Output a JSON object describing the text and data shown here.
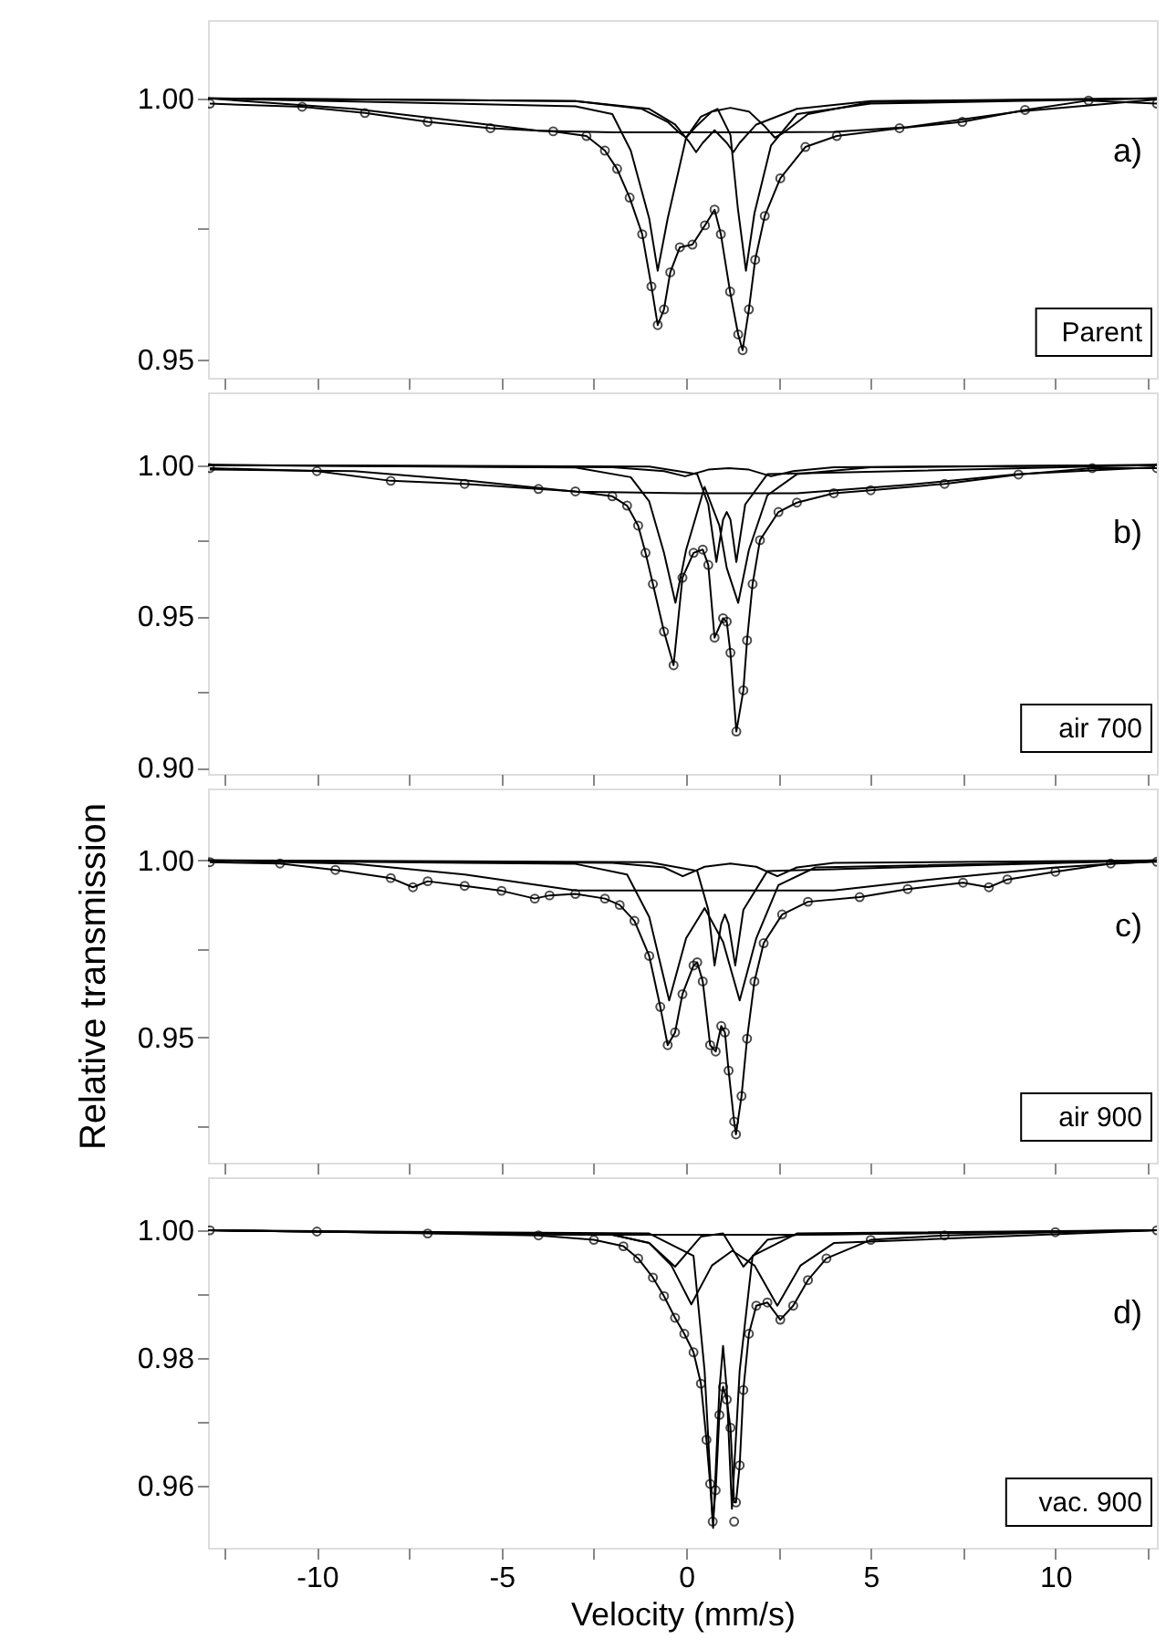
{
  "chart_data": [
    {
      "type": "line",
      "xlim": [
        -12.95,
        12.75
      ],
      "ylim": [
        0.9465,
        1.015
      ],
      "xticks": [
        {
          "value": -12.5,
          "label": null
        },
        -10,
        {
          "value": -7.5,
          "label": null
        },
        -5,
        {
          "value": -2.5,
          "label": null
        },
        0,
        {
          "value": 2.5,
          "label": null
        },
        5,
        {
          "value": 7.5,
          "label": null
        },
        10,
        {
          "value": 12.5,
          "label": null
        }
      ],
      "yticks": [
        0.95,
        {
          "value": 0.975,
          "label": null
        },
        {
          "value": 1.0,
          "label": "1.00"
        }
      ],
      "tick_labels": "y",
      "line_style": "solid",
      "annotations": [
        "a)",
        "Parent"
      ],
      "series": [
        {
          "type": "scatter",
          "marker": "circle",
          "color": "#000000",
          "x": [
            -12.9,
            -10.4,
            -8.7,
            -7.0,
            -5.3,
            -3.6,
            -2.7,
            -2.2,
            -1.87,
            -1.53,
            -1.19,
            -0.94,
            -0.77,
            -0.6,
            -0.43,
            -0.17,
            0.17,
            0.51,
            0.77,
            0.94,
            1.19,
            1.41,
            1.53,
            1.7,
            1.87,
            2.13,
            2.55,
            3.23,
            4.08,
            5.78,
            7.48,
            9.18,
            10.9,
            12.75
          ],
          "values": [
            0.999,
            0.9984,
            0.9972,
            0.9955,
            0.9943,
            0.9937,
            0.9928,
            0.99,
            0.9865,
            0.981,
            0.974,
            0.964,
            0.9566,
            0.9596,
            0.9667,
            0.9715,
            0.972,
            0.9757,
            0.9787,
            0.974,
            0.963,
            0.9548,
            0.9518,
            0.9596,
            0.9691,
            0.9775,
            0.9847,
            0.9907,
            0.9928,
            0.9943,
            0.9955,
            0.9978,
            0.9996,
            0.999
          ]
        },
        {
          "color": "#000000",
          "x": [
            -12.9,
            -10.4,
            -8.7,
            -7.0,
            -5.3,
            -3.6,
            -2.7,
            -2.2,
            -1.87,
            -1.53,
            -1.19,
            -0.94,
            -0.77,
            -0.6,
            -0.43,
            -0.17,
            0.17,
            0.51,
            0.77,
            0.94,
            1.19,
            1.41,
            1.53,
            1.7,
            1.87,
            2.13,
            2.55,
            3.23,
            4.08,
            5.78,
            7.48,
            9.18,
            10.9,
            12.75
          ],
          "values": [
            0.999,
            0.9984,
            0.9972,
            0.9955,
            0.9943,
            0.9937,
            0.9928,
            0.99,
            0.9865,
            0.981,
            0.974,
            0.964,
            0.9566,
            0.9596,
            0.9667,
            0.9715,
            0.972,
            0.9757,
            0.9787,
            0.974,
            0.963,
            0.9548,
            0.9518,
            0.9596,
            0.9691,
            0.9775,
            0.9847,
            0.9907,
            0.9928,
            0.9943,
            0.9955,
            0.9978,
            0.9996,
            0.999
          ]
        },
        {
          "color": "#000000",
          "x": [
            -12.95,
            -9,
            -6,
            -4,
            -2,
            0,
            2,
            4,
            6,
            9,
            12.75
          ],
          "values": [
            1.0,
            0.998,
            0.9955,
            0.9938,
            0.9935,
            0.9935,
            0.9935,
            0.9936,
            0.9945,
            0.9975,
            0.9998
          ]
        },
        {
          "color": "#000000",
          "x": [
            -12.95,
            -3,
            -2,
            -1.5,
            -1,
            -0.77,
            -0.5,
            0,
            0.4,
            0.85,
            1.2,
            1.4,
            1.62,
            1.85,
            2.3,
            3,
            5,
            12.75
          ],
          "values": [
            1.0,
            0.9985,
            0.997,
            0.99,
            0.977,
            0.967,
            0.977,
            0.9925,
            0.9965,
            0.998,
            0.993,
            0.979,
            0.967,
            0.978,
            0.991,
            0.997,
            0.999,
            1.0
          ]
        },
        {
          "color": "#000000",
          "x": [
            -12.95,
            -3,
            -1,
            -0.3,
            0.1,
            0.27,
            0.45,
            0.77,
            1.1,
            1.28,
            1.45,
            1.9,
            3,
            5,
            12.75
          ],
          "values": [
            1.0,
            0.9995,
            0.998,
            0.995,
            0.9915,
            0.9897,
            0.9915,
            0.9939,
            0.9915,
            0.9897,
            0.9915,
            0.995,
            0.998,
            0.9995,
            1.0
          ]
        },
        {
          "color": "#000000",
          "x": [
            -12.95,
            -3,
            -1.2,
            -0.5,
            -0.2,
            0,
            0.25,
            0.7,
            1.2,
            1.7,
            2.15,
            2.4,
            2.65,
            3.3,
            5,
            12.75
          ],
          "values": [
            1.0,
            0.9995,
            0.998,
            0.9955,
            0.9935,
            0.9925,
            0.9945,
            0.9975,
            0.9982,
            0.9975,
            0.9945,
            0.9925,
            0.9935,
            0.997,
            0.9993,
            1.0
          ]
        }
      ]
    },
    {
      "type": "line",
      "xlim": [
        -12.95,
        12.75
      ],
      "ylim": [
        0.898,
        1.024
      ],
      "xticks": [
        {
          "value": -12.5,
          "label": null
        },
        -10,
        {
          "value": -7.5,
          "label": null
        },
        -5,
        {
          "value": -2.5,
          "label": null
        },
        0,
        {
          "value": 2.5,
          "label": null
        },
        5,
        {
          "value": 7.5,
          "label": null
        },
        10,
        {
          "value": 12.5,
          "label": null
        }
      ],
      "yticks": [
        {
          "value": 0.9,
          "label": "0.90"
        },
        {
          "value": 0.925,
          "label": null
        },
        0.95,
        {
          "value": 0.975,
          "label": null
        },
        {
          "value": 1.0,
          "label": "1.00"
        }
      ],
      "tick_labels": "y",
      "line_style": "solid",
      "annotations": [
        "b)",
        "air 700"
      ],
      "series": [
        {
          "type": "scatter",
          "marker": "circle",
          "color": "#000000",
          "x": [
            -12.9,
            -10,
            -8,
            -6,
            -4,
            -3,
            -2,
            -1.6,
            -1.3,
            -1.1,
            -0.9,
            -0.6,
            -0.34,
            -0.1,
            0.2,
            0.45,
            0.6,
            0.77,
            1.0,
            1.1,
            1.2,
            1.36,
            1.55,
            1.65,
            1.8,
            2.0,
            2.5,
            3,
            4,
            5,
            7,
            9,
            11,
            12.75
          ],
          "values": [
            0.999,
            0.998,
            0.9948,
            0.9938,
            0.9921,
            0.9913,
            0.9897,
            0.9866,
            0.98,
            0.971,
            0.9607,
            0.945,
            0.9339,
            0.9628,
            0.971,
            0.9721,
            0.967,
            0.943,
            0.9494,
            0.9483,
            0.938,
            0.912,
            0.9256,
            0.9421,
            0.9607,
            0.9752,
            0.9845,
            0.9876,
            0.9907,
            0.9917,
            0.9938,
            0.9969,
            0.999,
            0.999
          ]
        },
        {
          "color": "#000000",
          "x": [
            -12.9,
            -10,
            -8,
            -6,
            -4,
            -3,
            -2,
            -1.6,
            -1.3,
            -1.1,
            -0.9,
            -0.6,
            -0.34,
            -0.1,
            0.2,
            0.45,
            0.6,
            0.77,
            1.0,
            1.1,
            1.2,
            1.36,
            1.55,
            1.65,
            1.8,
            2.0,
            2.5,
            3,
            4,
            5,
            7,
            9,
            11,
            12.75
          ],
          "values": [
            0.999,
            0.998,
            0.9948,
            0.9938,
            0.9921,
            0.9913,
            0.9897,
            0.9866,
            0.98,
            0.971,
            0.9607,
            0.945,
            0.9339,
            0.9628,
            0.971,
            0.9721,
            0.967,
            0.943,
            0.9494,
            0.9483,
            0.938,
            0.912,
            0.9256,
            0.9421,
            0.9607,
            0.9752,
            0.9845,
            0.9876,
            0.9907,
            0.9917,
            0.9938,
            0.9969,
            0.999,
            0.999
          ]
        },
        {
          "color": "#000000",
          "x": [
            -12.9,
            -9,
            -6,
            -3,
            0,
            3,
            6,
            9,
            12.7
          ],
          "values": [
            0.9985,
            0.998,
            0.995,
            0.9912,
            0.9907,
            0.9907,
            0.9935,
            0.997,
            0.9993
          ]
        },
        {
          "color": "#000000",
          "x": [
            -12.95,
            -3,
            -1.5,
            -1,
            -0.6,
            -0.29,
            0,
            0.5,
            0.9,
            1.1,
            1.41,
            1.7,
            2.2,
            3,
            5,
            12.75
          ],
          "values": [
            1.0,
            0.9992,
            0.996,
            0.988,
            0.971,
            0.9545,
            0.972,
            0.9928,
            0.98,
            0.966,
            0.9545,
            0.972,
            0.99,
            0.997,
            0.9993,
            1.0
          ]
        },
        {
          "color": "#000000",
          "x": [
            -12.95,
            -1,
            0.3,
            0.6,
            0.82,
            1.0,
            1.1,
            1.2,
            1.36,
            1.6,
            2.2,
            12.75
          ],
          "values": [
            1.0,
            0.9995,
            0.997,
            0.987,
            0.968,
            0.982,
            0.9845,
            0.982,
            0.968,
            0.987,
            0.997,
            1.0
          ]
        },
        {
          "color": "#000000",
          "x": [
            -12.95,
            -2,
            -0.6,
            -0.03,
            0.6,
            1.15,
            1.7,
            2.3,
            2.9,
            4,
            12.75
          ],
          "values": [
            1.0,
            0.9993,
            0.998,
            0.9963,
            0.9985,
            0.999,
            0.9985,
            0.9963,
            0.998,
            0.9993,
            1.0
          ]
        }
      ]
    },
    {
      "type": "line",
      "xlim": [
        -12.95,
        12.75
      ],
      "ylim": [
        0.9146,
        1.0203
      ],
      "xticks": [
        {
          "value": -12.5,
          "label": null
        },
        -10,
        {
          "value": -7.5,
          "label": null
        },
        -5,
        {
          "value": -2.5,
          "label": null
        },
        0,
        {
          "value": 2.5,
          "label": null
        },
        5,
        {
          "value": 7.5,
          "label": null
        },
        10,
        {
          "value": 12.5,
          "label": null
        }
      ],
      "yticks": [
        {
          "value": 0.925,
          "label": null
        },
        0.95,
        {
          "value": 0.975,
          "label": null
        },
        {
          "value": 1.0,
          "label": "1.00"
        }
      ],
      "tick_labels": "y",
      "ylabel": "Relative transmission",
      "line_style": "solid",
      "annotations": [
        "c)",
        "air 900"
      ],
      "series": [
        {
          "type": "scatter",
          "marker": "circle",
          "color": "#000000",
          "x": [
            -12.9,
            -11,
            -9.5,
            -8,
            -7.4,
            -7.0,
            -6,
            -5,
            -4.1,
            -3.7,
            -3,
            -2.2,
            -1.8,
            -1.4,
            -1.0,
            -0.7,
            -0.5,
            -0.3,
            -0.1,
            0.2,
            0.3,
            0.45,
            0.65,
            0.8,
            0.95,
            1.05,
            1.15,
            1.3,
            1.35,
            1.5,
            1.65,
            1.85,
            2.1,
            2.6,
            3.3,
            4.7,
            6,
            7.5,
            8.2,
            8.7,
            10,
            11.5,
            12.75
          ],
          "values": [
            0.9995,
            0.9991,
            0.9973,
            0.995,
            0.9924,
            0.9941,
            0.9928,
            0.9914,
            0.9892,
            0.9901,
            0.9905,
            0.9892,
            0.9874,
            0.9829,
            0.973,
            0.9586,
            0.9478,
            0.9514,
            0.9622,
            0.9703,
            0.9712,
            0.9658,
            0.9478,
            0.946,
            0.9532,
            0.9514,
            0.9406,
            0.9262,
            0.9226,
            0.9334,
            0.9496,
            0.9658,
            0.9766,
            0.9847,
            0.9883,
            0.9896,
            0.9919,
            0.9937,
            0.9924,
            0.9946,
            0.9968,
            0.9991,
            0.9996
          ]
        },
        {
          "color": "#000000",
          "x": [
            -12.9,
            -11,
            -9.5,
            -8,
            -7.4,
            -7.0,
            -6,
            -5,
            -4.1,
            -3.7,
            -3,
            -2.2,
            -1.8,
            -1.4,
            -1.0,
            -0.7,
            -0.5,
            -0.3,
            -0.1,
            0.2,
            0.3,
            0.45,
            0.65,
            0.8,
            0.95,
            1.05,
            1.15,
            1.3,
            1.35,
            1.5,
            1.65,
            1.85,
            2.1,
            2.6,
            3.3,
            4.7,
            6,
            7.5,
            8.2,
            8.7,
            10,
            11.5,
            12.75
          ],
          "values": [
            0.9995,
            0.9991,
            0.9973,
            0.995,
            0.9924,
            0.9941,
            0.9928,
            0.9914,
            0.9892,
            0.9901,
            0.9905,
            0.9892,
            0.9874,
            0.9829,
            0.973,
            0.9586,
            0.9478,
            0.9514,
            0.9622,
            0.9703,
            0.9712,
            0.9658,
            0.9478,
            0.946,
            0.9532,
            0.9514,
            0.9406,
            0.9262,
            0.9226,
            0.9334,
            0.9496,
            0.9658,
            0.9766,
            0.9847,
            0.9883,
            0.9896,
            0.9919,
            0.9937,
            0.9924,
            0.9946,
            0.9968,
            0.9991,
            0.9996
          ]
        },
        {
          "color": "#000000",
          "x": [
            -12.95,
            -3,
            -1.6,
            -1,
            -0.46,
            0,
            0.5,
            1.0,
            1.45,
            1.9,
            2.5,
            3.5,
            12.75
          ],
          "values": [
            1.0,
            0.999,
            0.996,
            0.984,
            0.9604,
            0.978,
            0.9865,
            0.977,
            0.9604,
            0.978,
            0.993,
            0.998,
            1.0
          ]
        },
        {
          "color": "#000000",
          "x": [
            -12.95,
            -1,
            0.3,
            0.6,
            0.77,
            0.95,
            1.05,
            1.15,
            1.33,
            1.55,
            2.2,
            12.75
          ],
          "values": [
            1.0,
            0.9995,
            0.997,
            0.986,
            0.9703,
            0.982,
            0.9847,
            0.982,
            0.9703,
            0.986,
            0.997,
            1.0
          ]
        },
        {
          "color": "#000000",
          "x": [
            -12.95,
            -2,
            -0.6,
            -0.09,
            0.5,
            1.2,
            1.9,
            2.47,
            3,
            4,
            12.75
          ],
          "values": [
            1.0,
            0.9993,
            0.998,
            0.9955,
            0.9982,
            0.9991,
            0.9982,
            0.9955,
            0.998,
            0.9993,
            1.0
          ]
        },
        {
          "color": "#000000",
          "x": [
            -12.95,
            -9,
            -6,
            -3,
            0,
            4,
            7,
            10,
            12.75
          ],
          "values": [
            1.0,
            0.999,
            0.996,
            0.9915,
            0.9915,
            0.9915,
            0.995,
            0.998,
            0.9998
          ]
        }
      ]
    },
    {
      "type": "line",
      "xlim": [
        -12.95,
        12.75
      ],
      "ylim": [
        0.9503,
        1.0083
      ],
      "xticks": [
        {
          "value": -12.5,
          "label": null
        },
        -10,
        {
          "value": -7.5,
          "label": null
        },
        -5,
        {
          "value": -2.5,
          "label": null
        },
        0,
        {
          "value": 2.5,
          "label": null
        },
        5,
        {
          "value": 7.5,
          "label": null
        },
        10,
        {
          "value": 12.5,
          "label": null
        }
      ],
      "yticks": [
        0.96,
        {
          "value": 0.97,
          "label": null
        },
        0.98,
        {
          "value": 0.99,
          "label": null
        },
        {
          "value": 1.0,
          "label": "1.00"
        }
      ],
      "xlabel": "Velocity (mm/s)",
      "line_style": "solid",
      "annotations": [
        "d)",
        "vac. 900"
      ],
      "series": [
        {
          "type": "scatter",
          "marker": "circle",
          "color": "#000000",
          "x": [
            -12.9,
            -10,
            -7,
            -4,
            -2.5,
            -1.7,
            -1.3,
            -0.9,
            -0.6,
            -0.3,
            -0.05,
            0.2,
            0.4,
            0.55,
            0.65,
            0.72,
            0.8,
            0.9,
            1.0,
            1.1,
            1.2,
            1.3,
            1.35,
            1.45,
            1.55,
            1.7,
            1.9,
            2.2,
            2.55,
            2.9,
            3.3,
            3.8,
            5,
            7,
            10,
            12.75
          ],
          "values": [
            1.0,
            0.9998,
            0.9995,
            0.9992,
            0.9985,
            0.9975,
            0.9956,
            0.9926,
            0.9897,
            0.9863,
            0.9838,
            0.9809,
            0.976,
            0.9672,
            0.9603,
            0.9544,
            0.9593,
            0.9711,
            0.9755,
            0.9735,
            0.9691,
            0.9544,
            0.9574,
            0.9632,
            0.975,
            0.9838,
            0.9882,
            0.9887,
            0.986,
            0.9882,
            0.9922,
            0.9956,
            0.9985,
            0.9992,
            0.9997,
            1.0
          ]
        },
        {
          "color": "#000000",
          "x": [
            -12.9,
            -10,
            -7,
            -4,
            -2.5,
            -1.7,
            -1.3,
            -0.9,
            -0.6,
            -0.3,
            -0.05,
            0.2,
            0.4,
            0.55,
            0.65,
            0.72,
            0.8,
            0.9,
            1.0,
            1.1,
            1.2,
            1.3,
            1.35,
            1.45,
            1.55,
            1.7,
            1.9,
            2.2,
            2.55,
            2.9,
            3.3,
            3.8,
            5,
            7,
            10,
            12.75
          ],
          "values": [
            1.0,
            0.9998,
            0.9995,
            0.9992,
            0.9985,
            0.9975,
            0.9956,
            0.9926,
            0.9897,
            0.9863,
            0.9838,
            0.9809,
            0.976,
            0.9672,
            0.9603,
            0.9544,
            0.9593,
            0.9711,
            0.9755,
            0.9735,
            0.9691,
            0.9574,
            0.9574,
            0.9632,
            0.975,
            0.9838,
            0.9882,
            0.9887,
            0.986,
            0.9882,
            0.9922,
            0.9956,
            0.9985,
            0.9992,
            0.9997,
            1.0
          ]
        },
        {
          "color": "#000000",
          "x": [
            -12.95,
            -2,
            -1,
            -0.3,
            0.4,
            1.0,
            1.55,
            2.2,
            3,
            12.75
          ],
          "values": [
            1.0,
            0.9993,
            0.998,
            0.9943,
            0.999,
            0.9995,
            0.9943,
            0.9985,
            0.9993,
            1.0
          ]
        },
        {
          "color": "#000000",
          "x": [
            -12.95,
            -2,
            -1,
            -0.4,
            0.14,
            0.7,
            1.25,
            1.85,
            2.47,
            3.1,
            4,
            12.75
          ],
          "values": [
            1.0,
            0.9993,
            0.998,
            0.9945,
            0.9884,
            0.9945,
            0.9968,
            0.9945,
            0.9882,
            0.9945,
            0.998,
            1.0
          ]
        },
        {
          "color": "#000000",
          "x": [
            -12.95,
            -1,
            0.2,
            0.5,
            0.73,
            0.9,
            1.0,
            1.1,
            1.24,
            1.45,
            1.8,
            3,
            12.75
          ],
          "values": [
            1.0,
            0.9995,
            0.996,
            0.978,
            0.9534,
            0.975,
            0.9819,
            0.975,
            0.9564,
            0.978,
            0.996,
            0.9995,
            1.0
          ]
        },
        {
          "color": "#000000",
          "x": [
            -12.95,
            -6,
            -3,
            0,
            3,
            6,
            12.75
          ],
          "values": [
            1.0,
            0.9995,
            0.9993,
            0.9993,
            0.9993,
            0.9995,
            1.0
          ]
        }
      ]
    }
  ]
}
